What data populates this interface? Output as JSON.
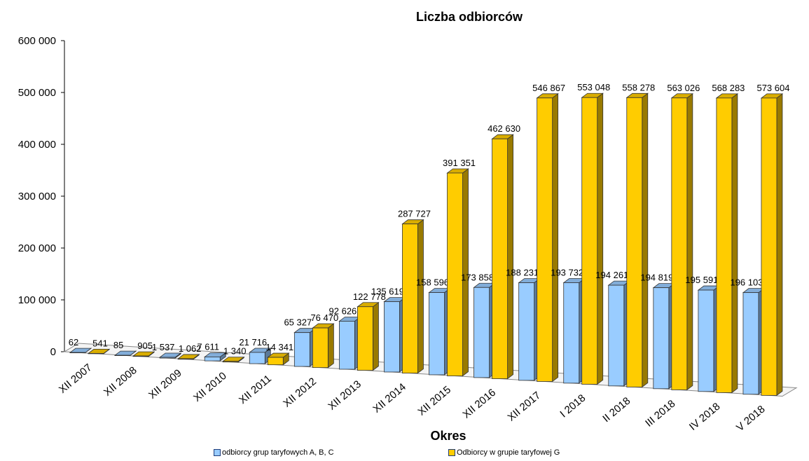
{
  "chart_data": {
    "type": "bar",
    "title": "Liczba odbiorców",
    "xlabel": "Okres",
    "ylabel": "",
    "ylim": [
      0,
      600000
    ],
    "yticks": [
      "0",
      "100 000",
      "200 000",
      "300 000",
      "400 000",
      "500 000",
      "600 000"
    ],
    "categories": [
      "XII 2007",
      "XII 2008",
      "XII 2009",
      "XII 2010",
      "XII 2011",
      "XII 2012",
      "XII 2013",
      "XII 2014",
      "XII 2015",
      "XII 2016",
      "XII 2017",
      "I 2018",
      "II 2018",
      "III 2018",
      "IV 2018",
      "V 2018"
    ],
    "series": [
      {
        "name": "odbiorcy grup taryfowych A, B, C",
        "color": "#99ccff",
        "values": [
          62,
          85,
          1537,
          7611,
          21716,
          65327,
          92626,
          135619,
          158596,
          173858,
          188231,
          193732,
          194261,
          194819,
          195591,
          196103
        ],
        "labels": [
          "62",
          "85",
          "1 537",
          "7 611",
          "21 716",
          "65 327",
          "92 626",
          "135 619",
          "158 596",
          "173 858",
          "188 231",
          "193 732",
          "194 261",
          "194 819",
          "195 591",
          "196 103"
        ]
      },
      {
        "name": "Odbiorcy w grupie taryfowej G",
        "color": "#ffcc00",
        "values": [
          541,
          905,
          1062,
          1340,
          14341,
          76470,
          122778,
          287727,
          391351,
          462630,
          546867,
          553048,
          558278,
          563026,
          568283,
          573604
        ],
        "labels": [
          "541",
          "905",
          "1 062",
          "1 340",
          "14 341",
          "76 470",
          "122 778",
          "287 727",
          "391 351",
          "462 630",
          "546 867",
          "553 048",
          "558 278",
          "563 026",
          "568 283",
          "573 604"
        ]
      }
    ],
    "legend": "bottom",
    "grid": false,
    "style": "3d-clustered-column"
  }
}
